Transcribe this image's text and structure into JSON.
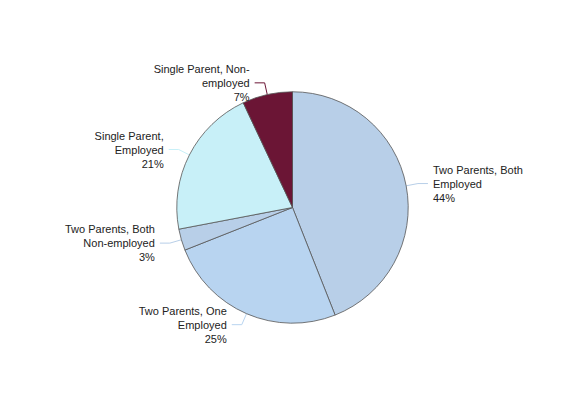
{
  "chart_data": {
    "type": "pie",
    "categories": [
      "Two Parents, Both\nEmployed\n44%",
      "Two Parents, One\nEmployed\n25%",
      "Two Parents, Both\nNon-employed\n3%",
      "Single Parent,\nEmployed\n21%",
      "Single Parent, Non-\nemployed\n7%"
    ],
    "values": [
      44,
      25,
      3,
      21,
      7
    ],
    "colors": [
      "#b8cfe8",
      "#b8d4f0",
      "#b8cfe8",
      "#c8f0f8",
      "#6b1535"
    ]
  }
}
